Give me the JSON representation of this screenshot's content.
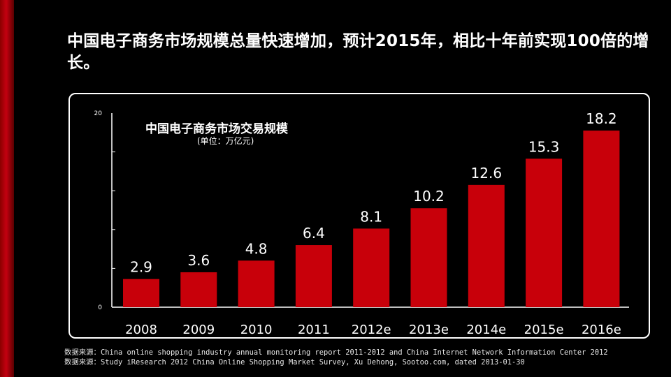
{
  "slide": {
    "title": "中国电子商务市场规模总量快速增加，预计2015年，相比十年前实现100倍的增长。",
    "sources": [
      "数据来源：China online shopping industry annual monitoring report 2011-2012 and China Internet Network Information Center 2012",
      "数据来源：Study iResearch 2012 China Online Shopping Market Survey, Xu Dehong, Sootoo.com, dated 2013-01-30"
    ]
  },
  "colors": {
    "bar": "#c8000a",
    "background": "#000000",
    "text": "#ffffff",
    "accent_stripe": "#c40010"
  },
  "chart_data": {
    "type": "bar",
    "title": "中国电子商务市场交易规模",
    "subtitle": "(单位：万亿元)",
    "categories": [
      "2008",
      "2009",
      "2010",
      "2011",
      "2012e",
      "2013e",
      "2014e",
      "2015e",
      "2016e"
    ],
    "values": [
      2.9,
      3.6,
      4.8,
      6.4,
      8.1,
      10.2,
      12.6,
      15.3,
      18.2
    ],
    "data_labels": [
      "2.9",
      "3.6",
      "4.8",
      "6.4",
      "8.1",
      "10.2",
      "12.6",
      "15.3",
      "18.2"
    ],
    "y_tick_labels": [
      "0",
      "20"
    ],
    "ylim": [
      0,
      20
    ],
    "grid": false,
    "legend": "none"
  }
}
